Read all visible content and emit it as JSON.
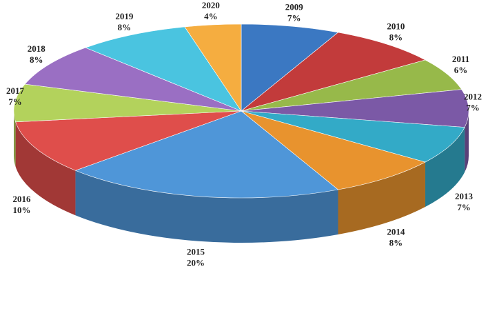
{
  "chart_data": {
    "type": "pie",
    "title": "",
    "style": "3d",
    "data_labels": "category and percent",
    "categories": [
      "2009",
      "2010",
      "2011",
      "2012",
      "2013",
      "2014",
      "2015",
      "2016",
      "2017",
      "2018",
      "2019",
      "2020"
    ],
    "values": [
      7,
      8,
      6,
      7,
      7,
      8,
      20,
      10,
      7,
      8,
      8,
      4
    ],
    "labels": [
      "7%",
      "8%",
      "6%",
      "7%",
      "7%",
      "8%",
      "20%",
      "10%",
      "7%",
      "8%",
      "8%",
      "4%"
    ],
    "colors": [
      "#3b78c2",
      "#c23b3b",
      "#97b94a",
      "#7b59a6",
      "#33aac7",
      "#e8932e",
      "#4f96d8",
      "#df4e4b",
      "#b3d25c",
      "#9a6fc3",
      "#4ac4e0",
      "#f5ad40"
    ]
  }
}
